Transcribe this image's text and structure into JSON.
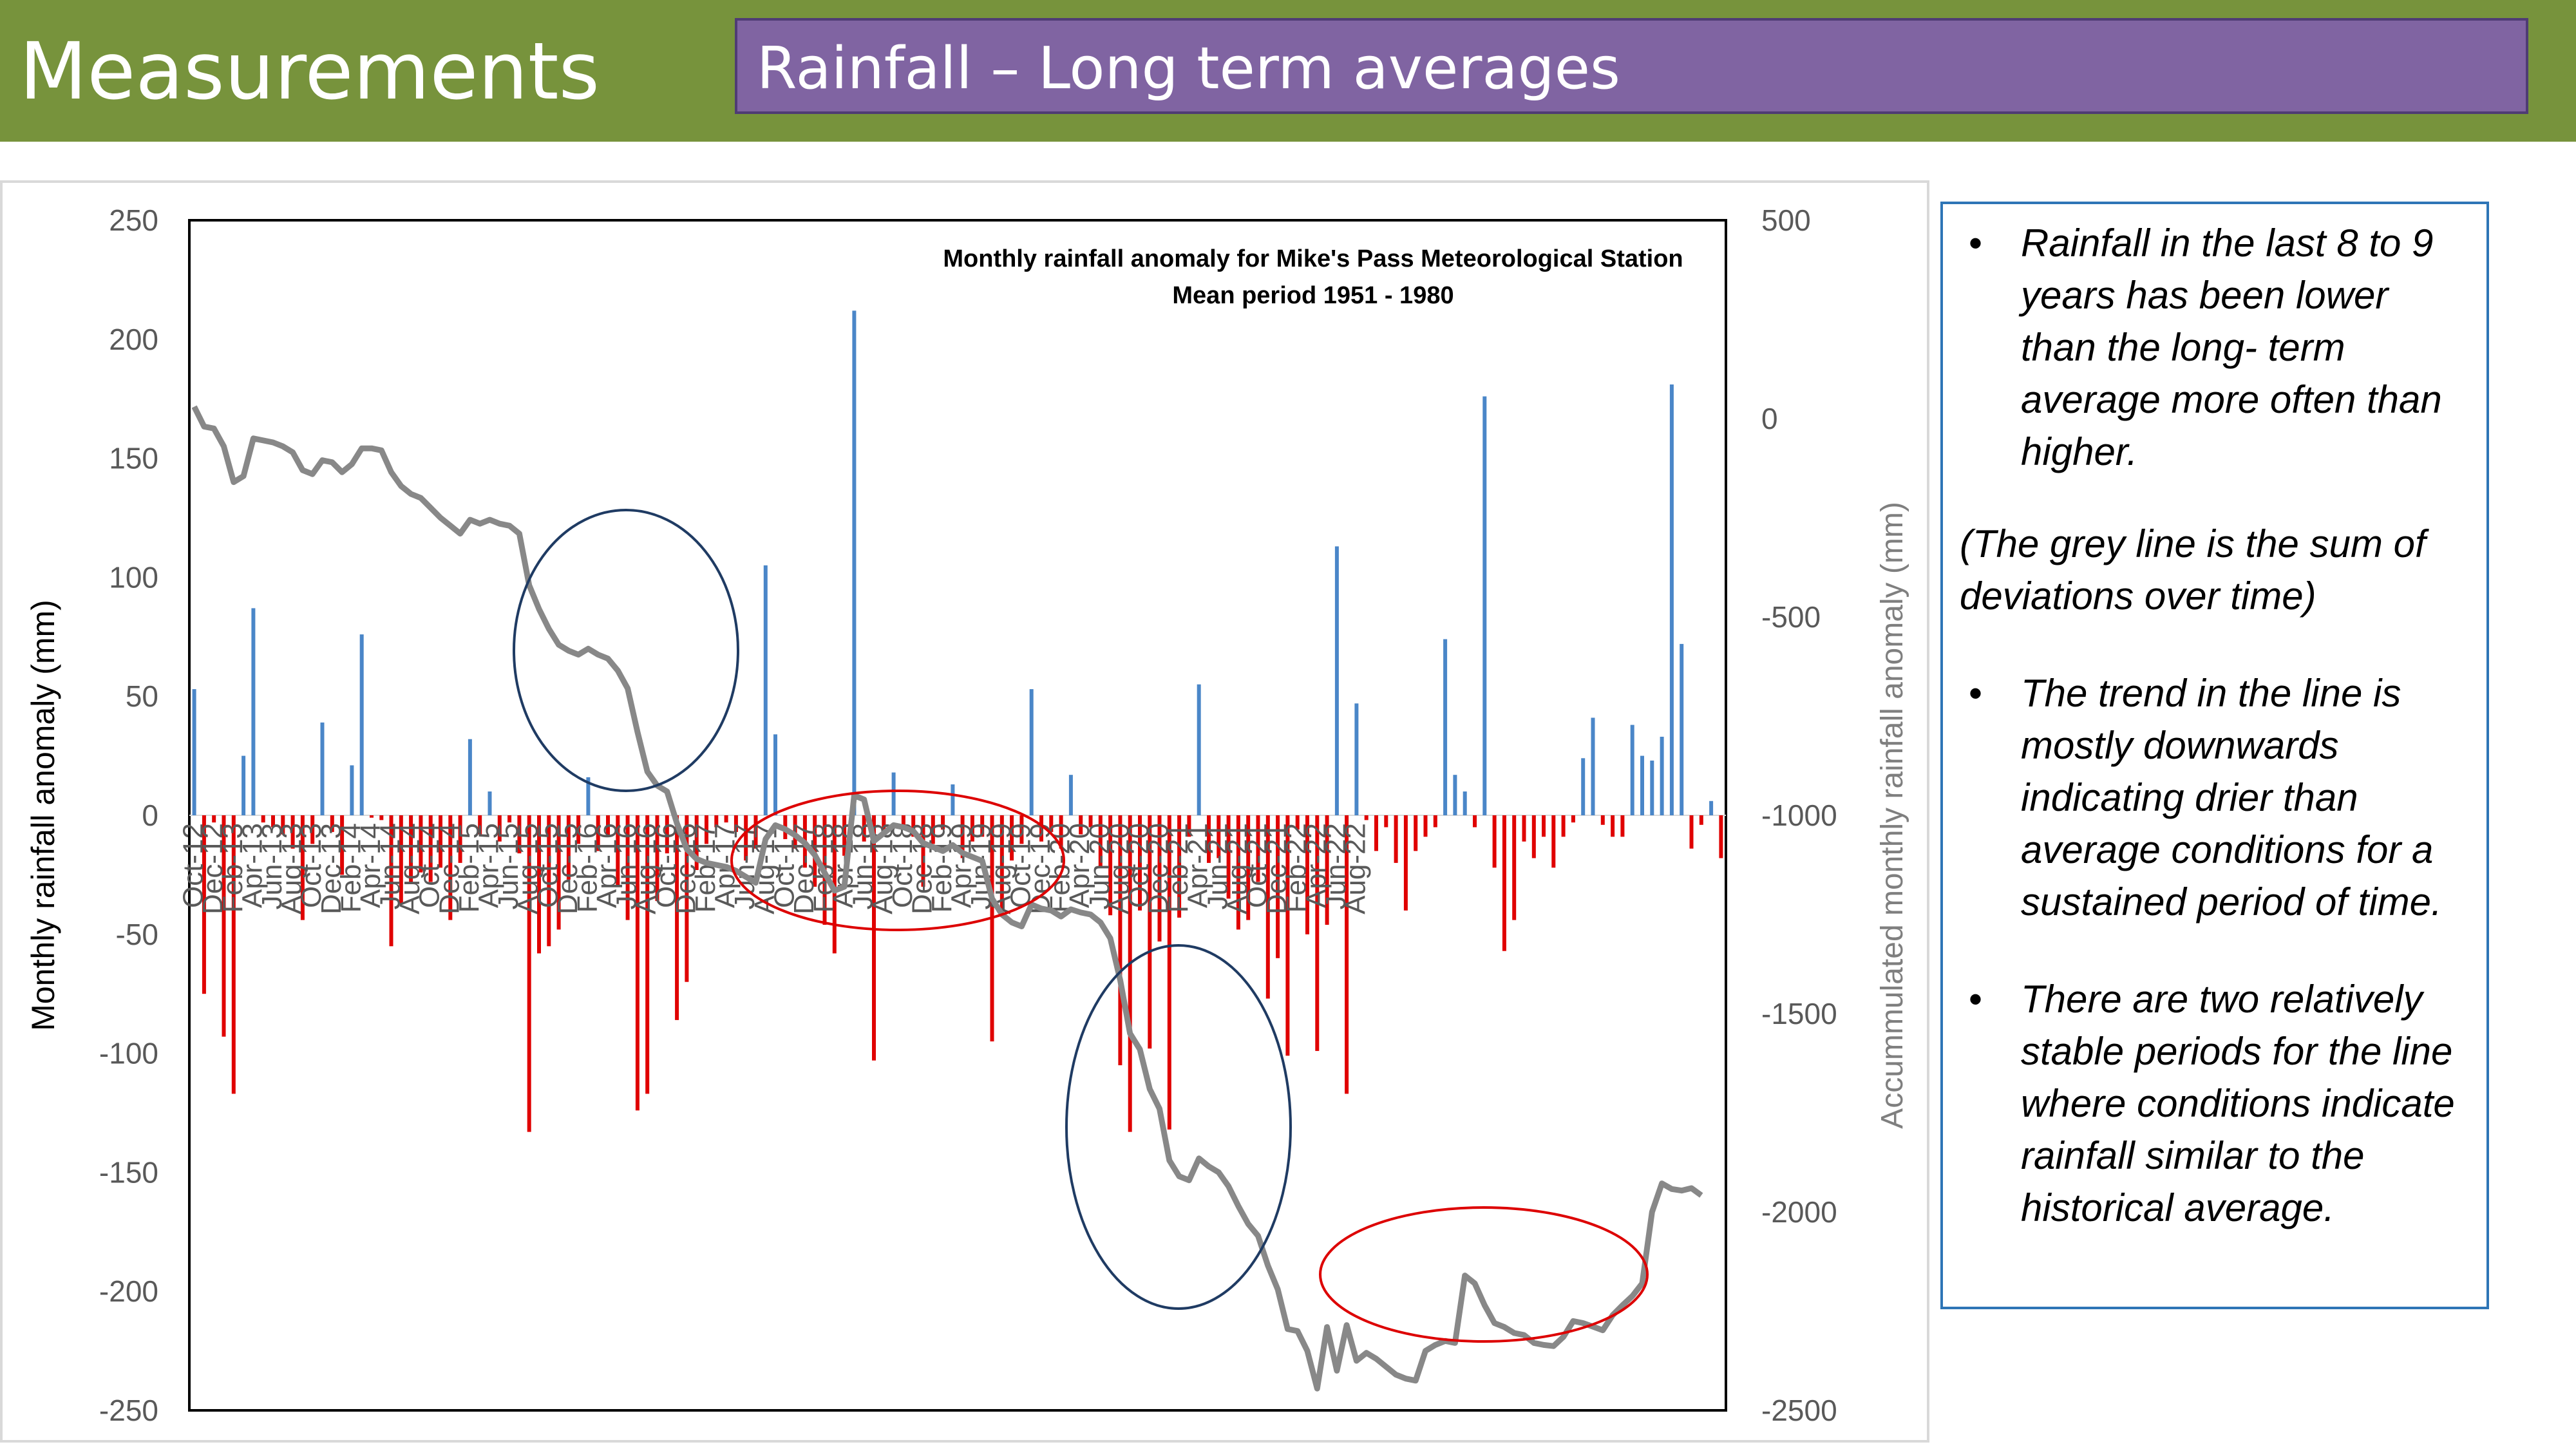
{
  "header": {
    "title": "Measurements",
    "subtitle": "Rainfall – Long term averages"
  },
  "colors": {
    "header_bg": "#77933c",
    "subtitle_bg": "#8064a2",
    "positive_bar": "#4a86c8",
    "negative_bar": "#e00000",
    "cumulative_line": "#888888",
    "stable_ellipse": "#dd0000",
    "decline_ellipse": "#1f3b63"
  },
  "chart_data": {
    "type": "bar",
    "title": "Monthly rainfall anomaly for Mike's Pass Meteorological Station",
    "subtitle": "Mean period 1951 - 1980",
    "ylabel": "Monthly rainfall anomaly (mm)",
    "y2label": "Accummulated monthly rainfall anomaly (mm)",
    "ylim": [
      -250,
      250
    ],
    "y2lim": [
      -2500,
      500
    ],
    "yticks": [
      "250",
      "200",
      "150",
      "100",
      "50",
      "0",
      "-50",
      "-100",
      "-150",
      "-200",
      "-250"
    ],
    "y2ticks": [
      "500",
      "0",
      "-500",
      "-1000",
      "-1500",
      "-2000",
      "-2500"
    ],
    "xticks": [
      "Oct-12",
      "Dec-12",
      "Feb-13",
      "Apr-13",
      "Jun-13",
      "Aug-13",
      "Oct-13",
      "Dec-13",
      "Feb-14",
      "Apr-14",
      "Jun-14",
      "Aug-14",
      "Oct-14",
      "Dec-14",
      "Feb-15",
      "Apr-15",
      "Jun-15",
      "Aug-15",
      "Oct-15",
      "Dec-15",
      "Feb-16",
      "Apr-16",
      "Jun-16",
      "Aug-16",
      "Oct-16",
      "Dec-16",
      "Feb-17",
      "Apr-17",
      "Jun-17",
      "Aug-17",
      "Oct-17",
      "Dec-17",
      "Feb-18",
      "Apr-18",
      "Jun-18",
      "Aug-18",
      "Oct-18",
      "Dec-18",
      "Feb-19",
      "Apr-19",
      "Jun-19",
      "Aug-19",
      "Oct-19",
      "Dec-19",
      "Feb-20",
      "Apr-20",
      "Jun-20",
      "Aug-20",
      "Oct-20",
      "Dec-20",
      "Feb-21",
      "Apr-21",
      "Jun-21",
      "Aug-21",
      "Oct-21",
      "Dec-21",
      "Feb-22",
      "Apr-22",
      "Jun-22",
      "Aug-22"
    ],
    "monthly_anomaly": [
      53,
      -75,
      -3,
      -93,
      -117,
      25,
      87,
      -3,
      -5,
      -8,
      -14,
      -44,
      -12,
      39,
      -7,
      -25,
      21,
      76,
      -1,
      -2,
      -55,
      -37,
      -28,
      -24,
      -28,
      -22,
      -44,
      -20,
      32,
      -8,
      10,
      -11,
      -3,
      -16,
      -133,
      -58,
      -55,
      -48,
      -27,
      -12,
      16,
      -15,
      -9,
      -30,
      -44,
      -124,
      -117,
      -36,
      -16,
      -86,
      -70,
      -23,
      -12,
      -5,
      -3,
      -7,
      -19,
      -14,
      105,
      34,
      -10,
      -14,
      -22,
      -30,
      -46,
      -58,
      -17,
      212,
      -11,
      -103,
      -7,
      18,
      -5,
      -9,
      -30,
      -12,
      -6,
      13,
      -18,
      -11,
      -9,
      -95,
      -40,
      -19,
      -12,
      53,
      -11,
      -7,
      -14,
      17,
      -8,
      -5,
      -22,
      -42,
      -105,
      -133,
      -40,
      -98,
      -53,
      -132,
      -43,
      -9,
      55,
      -20,
      -18,
      -35,
      -48,
      -44,
      -28,
      -77,
      -60,
      -101,
      -6,
      -50,
      -99,
      -46,
      113,
      -117,
      47,
      -2,
      -15,
      -5,
      -20,
      -40,
      -15,
      -9,
      -5,
      74,
      17,
      10,
      -5,
      176,
      -22,
      -57,
      -44,
      -11,
      -18,
      -9,
      -22,
      -9,
      -3,
      24,
      41,
      -4,
      -9,
      -9,
      38,
      25,
      23,
      33,
      181,
      72,
      -14,
      -4,
      6,
      -18
    ],
    "cumulative_anomaly": [
      30,
      -20,
      -25,
      -70,
      -160,
      -145,
      -50,
      -55,
      -60,
      -70,
      -85,
      -130,
      -140,
      -105,
      -110,
      -135,
      -115,
      -75,
      -75,
      -80,
      -135,
      -170,
      -190,
      -200,
      -225,
      -250,
      -270,
      -290,
      -255,
      -265,
      -255,
      -265,
      -270,
      -290,
      -420,
      -480,
      -530,
      -570,
      -585,
      -595,
      -580,
      -595,
      -605,
      -635,
      -680,
      -790,
      -890,
      -925,
      -940,
      -1020,
      -1085,
      -1110,
      -1120,
      -1125,
      -1130,
      -1140,
      -1155,
      -1170,
      -1060,
      -1025,
      -1035,
      -1050,
      -1070,
      -1100,
      -1145,
      -1190,
      -1180,
      -950,
      -960,
      -1065,
      -1045,
      -1025,
      -1030,
      -1040,
      -1070,
      -1080,
      -1090,
      -1075,
      -1095,
      -1105,
      -1115,
      -1210,
      -1250,
      -1270,
      -1280,
      -1225,
      -1235,
      -1240,
      -1255,
      -1237,
      -1245,
      -1250,
      -1270,
      -1310,
      -1415,
      -1550,
      -1590,
      -1690,
      -1740,
      -1870,
      -1910,
      -1920,
      -1865,
      -1885,
      -1900,
      -1935,
      -1985,
      -2030,
      -2060,
      -2135,
      -2195,
      -2295,
      -2300,
      -2350,
      -2445,
      -2290,
      -2400,
      -2285,
      -2375,
      -2355,
      -2370,
      -2390,
      -2410,
      -2420,
      -2425,
      -2350,
      -2335,
      -2325,
      -2330,
      -2160,
      -2180,
      -2235,
      -2280,
      -2290,
      -2305,
      -2310,
      -2330,
      -2335,
      -2338,
      -2315,
      -2275,
      -2280,
      -2289,
      -2298,
      -2260,
      -2235,
      -2212,
      -2180,
      -2000,
      -1928,
      -1942,
      -1946,
      -1940,
      -1958
    ]
  },
  "notes": {
    "bullet1": "Rainfall in the last 8 to 9 years has been lower than the long- term average more often than higher.",
    "paren": "(The grey line is the sum of deviations over time)",
    "bullet2": "The trend in the line is mostly downwards indicating drier than average conditions for a sustained period of time.",
    "bullet3": "There are two relatively stable periods for the line where conditions indicate rainfall similar to the historical average."
  }
}
